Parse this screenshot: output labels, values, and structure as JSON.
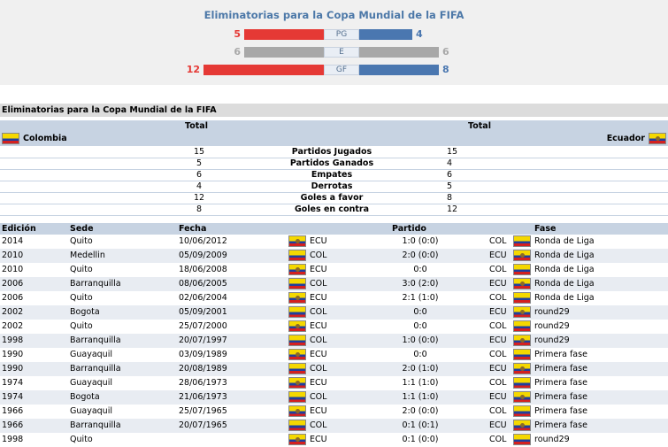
{
  "summary": {
    "title": "Eliminatorias para la Copa Mundial de la FIFA",
    "rows": [
      {
        "label": "PG",
        "left": "5",
        "right": "4",
        "lf": 0.45,
        "rf": 0.36,
        "lcolor": "#e53935",
        "rcolor": "#4a77b0"
      },
      {
        "label": "E",
        "left": "6",
        "right": "6",
        "lf": 1.0,
        "rf": 1.0,
        "lcolor": "#a8a8a8",
        "rcolor": "#a8a8a8"
      },
      {
        "label": "GF",
        "left": "12",
        "right": "8",
        "lf": 1.0,
        "rf": 1.0,
        "lcolor": "#e53935",
        "rcolor": "#4a77b0"
      }
    ]
  },
  "stats": {
    "header": "Eliminatorias para la Copa Mundial de la FIFA",
    "total_left": "Total",
    "total_right": "Total",
    "team_left": "Colombia",
    "team_right": "Ecuador",
    "rows": [
      {
        "l": "15",
        "label": "Partidos Jugados",
        "r": "15"
      },
      {
        "l": "5",
        "label": "Partidos Ganados",
        "r": "4"
      },
      {
        "l": "6",
        "label": "Empates",
        "r": "6"
      },
      {
        "l": "4",
        "label": "Derrotas",
        "r": "5"
      },
      {
        "l": "12",
        "label": "Goles a favor",
        "r": "8"
      },
      {
        "l": "8",
        "label": "Goles en contra",
        "r": "12"
      }
    ]
  },
  "matches": {
    "columns": {
      "edicion": "Edición",
      "sede": "Sede",
      "fecha": "Fecha",
      "partido": "Partido",
      "fase": "Fase"
    },
    "rows": [
      {
        "ed": "2014",
        "sede": "Quito",
        "fecha": "10/06/2012",
        "home": "ECU",
        "score": "1:0 (0:0)",
        "away": "COL",
        "fase": "Ronda de Liga"
      },
      {
        "ed": "2010",
        "sede": "Medellin",
        "fecha": "05/09/2009",
        "home": "COL",
        "score": "2:0 (0:0)",
        "away": "ECU",
        "fase": "Ronda de Liga"
      },
      {
        "ed": "2010",
        "sede": "Quito",
        "fecha": "18/06/2008",
        "home": "ECU",
        "score": "0:0",
        "away": "COL",
        "fase": "Ronda de Liga"
      },
      {
        "ed": "2006",
        "sede": "Barranquilla",
        "fecha": "08/06/2005",
        "home": "COL",
        "score": "3:0 (2:0)",
        "away": "ECU",
        "fase": "Ronda de Liga"
      },
      {
        "ed": "2006",
        "sede": "Quito",
        "fecha": "02/06/2004",
        "home": "ECU",
        "score": "2:1 (1:0)",
        "away": "COL",
        "fase": "Ronda de Liga"
      },
      {
        "ed": "2002",
        "sede": "Bogota",
        "fecha": "05/09/2001",
        "home": "COL",
        "score": "0:0",
        "away": "ECU",
        "fase": "round29"
      },
      {
        "ed": "2002",
        "sede": "Quito",
        "fecha": "25/07/2000",
        "home": "ECU",
        "score": "0:0",
        "away": "COL",
        "fase": "round29"
      },
      {
        "ed": "1998",
        "sede": "Barranquilla",
        "fecha": "20/07/1997",
        "home": "COL",
        "score": "1:0 (0:0)",
        "away": "ECU",
        "fase": "round29"
      },
      {
        "ed": "1990",
        "sede": "Guayaquil",
        "fecha": "03/09/1989",
        "home": "ECU",
        "score": "0:0",
        "away": "COL",
        "fase": "Primera fase"
      },
      {
        "ed": "1990",
        "sede": "Barranquilla",
        "fecha": "20/08/1989",
        "home": "COL",
        "score": "2:0 (1:0)",
        "away": "ECU",
        "fase": "Primera fase"
      },
      {
        "ed": "1974",
        "sede": "Guayaquil",
        "fecha": "28/06/1973",
        "home": "ECU",
        "score": "1:1 (1:0)",
        "away": "COL",
        "fase": "Primera fase"
      },
      {
        "ed": "1974",
        "sede": "Bogota",
        "fecha": "21/06/1973",
        "home": "COL",
        "score": "1:1 (1:0)",
        "away": "ECU",
        "fase": "Primera fase"
      },
      {
        "ed": "1966",
        "sede": "Guayaquil",
        "fecha": "25/07/1965",
        "home": "ECU",
        "score": "2:0 (0:0)",
        "away": "COL",
        "fase": "Primera fase"
      },
      {
        "ed": "1966",
        "sede": "Barranquilla",
        "fecha": "20/07/1965",
        "home": "COL",
        "score": "0:1 (0:1)",
        "away": "ECU",
        "fase": "Primera fase"
      },
      {
        "ed": "1998",
        "sede": "Quito",
        "fecha": "",
        "home": "ECU",
        "score": "0:1 (0:0)",
        "away": "COL",
        "fase": "round29"
      }
    ]
  },
  "icons": {
    "flag_left": "colombia-flag-icon",
    "flag_right": "ecuador-flag-icon"
  }
}
